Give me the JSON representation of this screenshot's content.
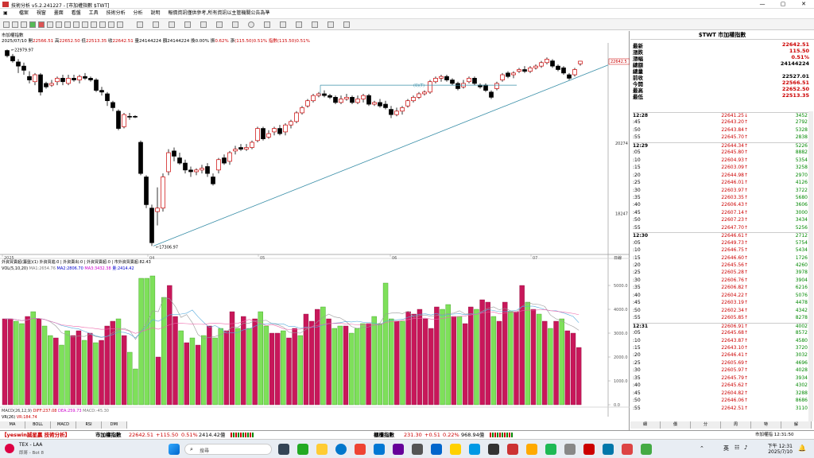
{
  "window": {
    "title": "技術分析 v5.2.241227 - [市加權指數 $TWT]"
  },
  "menu": [
    "檔案",
    "視窗",
    "畫面",
    "看盤",
    "工具",
    "技術分析",
    "分析",
    "說明",
    "報價資訊僅供參考,所有資訊以主管機關公告為準"
  ],
  "chart": {
    "name": "市加權指數",
    "ohlc": {
      "date": "2025/07/10",
      "open_label": "開",
      "open": "22566.51",
      "high_label": "高",
      "high": "22652.50",
      "low_label": "低",
      "low": "22513.35",
      "close_label": "收",
      "close": "22642.51",
      "vol_label": "量",
      "vol": "24144224",
      "amt_label": "額",
      "amt": "24144224",
      "chg_label": "換",
      "chg": "0.00%",
      "amp_label": "振",
      "amp": "0.62%",
      "diff_label": "漲",
      "diff": "(115.50)",
      "diffpct": "0.51%",
      "idx_label": "指數",
      "idx": "(115.50)",
      "idxpct": "0.51%"
    },
    "price_axis": [
      "22642.5",
      "20274",
      "18247"
    ],
    "date_axis": [
      "2025",
      "04",
      "05",
      "06",
      "07"
    ],
    "axis_unit": "日線",
    "annotations": {
      "high": "22979.97",
      "low": "17306.97",
      "line_label": "(0)(T)"
    }
  },
  "volume_panel": {
    "hdr1": "外資買賣超(籌盤)(1) 外資買進:0 | 外資賣出:0 | 外資買賣超:0 | 市外資買賣超:82.43",
    "hdr2_prefix": "VOL(5,10,20)",
    "ma1": "MA1:2654.76",
    "ma2": "MA2:2806.70",
    "ma3": "MA3:3432.38",
    "vol": "量:2414.42",
    "axis": [
      "5000.0",
      "4000.0",
      "3000.0",
      "2000.0",
      "1000.0",
      "0.0"
    ]
  },
  "macd": {
    "label": "MACD(26,12,9)",
    "diff": "DIFF:237.08",
    "dea": "DEA:259.73",
    "macd": "MACD:-45.30",
    "vr": "VR(26)",
    "vrval": "VR:184.74"
  },
  "sub_tabs": [
    "MA",
    "BOLL",
    "MACD",
    "RSI",
    "DMI"
  ],
  "chart_data": {
    "type": "candlestick",
    "price_labels": {
      "last": 22642.51,
      "high_marker": 22979.97,
      "low_marker": 17306.97
    },
    "volume_axis": [
      0,
      1000,
      2000,
      3000,
      4000,
      5000
    ]
  },
  "quote": {
    "title": "$TWT 市加權指數",
    "rows": [
      {
        "label": "最新",
        "value": "22642.51",
        "color": "red"
      },
      {
        "label": "漲跌",
        "value": "115.50",
        "color": "red"
      },
      {
        "label": "漲幅",
        "value": "0.51%",
        "color": "red"
      },
      {
        "label": "總額",
        "value": "24144224",
        "color": "black"
      },
      {
        "label": "總量",
        "value": "",
        "color": "black"
      },
      {
        "label": "前收",
        "value": "22527.01",
        "color": "black"
      },
      {
        "label": "今開",
        "value": "22566.51",
        "color": "red"
      },
      {
        "label": "最高",
        "value": "22652.50",
        "color": "red"
      },
      {
        "label": "最低",
        "value": "22513.35",
        "color": "red"
      }
    ],
    "ticks": [
      {
        "t": "12:28",
        "p": "22641.25↓",
        "v": "3452",
        "big": true
      },
      {
        "t": ":45",
        "p": "22643.20↑",
        "v": "2792"
      },
      {
        "t": ":50",
        "p": "22643.84↑",
        "v": "5328"
      },
      {
        "t": ":55",
        "p": "22645.70↑",
        "v": "2838"
      },
      {
        "t": "12:29",
        "p": "22644.34↑",
        "v": "5226",
        "big": true
      },
      {
        "t": ":05",
        "p": "22645.80↑",
        "v": "8882"
      },
      {
        "t": ":10",
        "p": "22604.93↑",
        "v": "5354"
      },
      {
        "t": ":15",
        "p": "22603.09↑",
        "v": "3258"
      },
      {
        "t": ":20",
        "p": "22644.98↑",
        "v": "2970"
      },
      {
        "t": ":25",
        "p": "22646.01↑",
        "v": "4126"
      },
      {
        "t": ":30",
        "p": "22603.97↑",
        "v": "3722"
      },
      {
        "t": ":35",
        "p": "22603.35↑",
        "v": "5680"
      },
      {
        "t": ":40",
        "p": "22606.43↑",
        "v": "3606"
      },
      {
        "t": ":45",
        "p": "22607.14↑",
        "v": "3000"
      },
      {
        "t": ":50",
        "p": "22607.23↑",
        "v": "3434"
      },
      {
        "t": ":55",
        "p": "22647.70↑",
        "v": "5256"
      },
      {
        "t": "12:30",
        "p": "22646.61↑",
        "v": "2712",
        "big": true
      },
      {
        "t": ":05",
        "p": "22649.73↑",
        "v": "5754"
      },
      {
        "t": ":10",
        "p": "22646.75↑",
        "v": "5434"
      },
      {
        "t": ":15",
        "p": "22646.60↑",
        "v": "1726"
      },
      {
        "t": ":20",
        "p": "22645.56↑",
        "v": "4260"
      },
      {
        "t": ":25",
        "p": "22605.28↑",
        "v": "3978"
      },
      {
        "t": ":30",
        "p": "22606.76↑",
        "v": "3904"
      },
      {
        "t": ":35",
        "p": "22606.82↑",
        "v": "6216"
      },
      {
        "t": ":40",
        "p": "22604.22↑",
        "v": "5076"
      },
      {
        "t": ":45",
        "p": "22603.19↑",
        "v": "4478"
      },
      {
        "t": ":50",
        "p": "22602.34↑",
        "v": "4342"
      },
      {
        "t": ":55",
        "p": "22605.85↑",
        "v": "8278"
      },
      {
        "t": "12:31",
        "p": "22606.91↑",
        "v": "4002",
        "big": true
      },
      {
        "t": ":05",
        "p": "22645.68↑",
        "v": "8572"
      },
      {
        "t": ":10",
        "p": "22643.87↑",
        "v": "4580"
      },
      {
        "t": ":15",
        "p": "22643.10↑",
        "v": "3720"
      },
      {
        "t": ":20",
        "p": "22646.41↑",
        "v": "3032"
      },
      {
        "t": ":25",
        "p": "22605.69↑",
        "v": "4696"
      },
      {
        "t": ":30",
        "p": "22605.97↑",
        "v": "4028"
      },
      {
        "t": ":35",
        "p": "22645.79↑",
        "v": "3934"
      },
      {
        "t": ":40",
        "p": "22645.62↑",
        "v": "4302"
      },
      {
        "t": ":45",
        "p": "22604.82↑",
        "v": "3288"
      },
      {
        "t": ":50",
        "p": "22646.06↑",
        "v": "8686"
      },
      {
        "t": ":55",
        "p": "22642.51↑",
        "v": "3110"
      }
    ],
    "tabs": [
      "細",
      "價",
      "分",
      "周",
      "特",
      "解"
    ]
  },
  "status": {
    "app": "【yeswin誠星贏 技術分析】",
    "idx1_name": "市加權指數",
    "idx1_val": "22642.51",
    "idx1_chg": "+115.50",
    "idx1_pct": "0.51%",
    "idx1_amt": "2414.42億",
    "idx2_name": "櫃檯指數",
    "idx2_val": "231.30",
    "idx2_chg": "+0.51",
    "idx2_pct": "0.22%",
    "idx2_amt": "968.94億",
    "right": "市加權指 12:31:50"
  },
  "taskbar": {
    "app_name": "TEX - LAA",
    "app_sub": "即將 - Bot 8",
    "search": "搜尋",
    "lang": "英",
    "time": "下午 12:31",
    "date": "2025/7/10"
  }
}
